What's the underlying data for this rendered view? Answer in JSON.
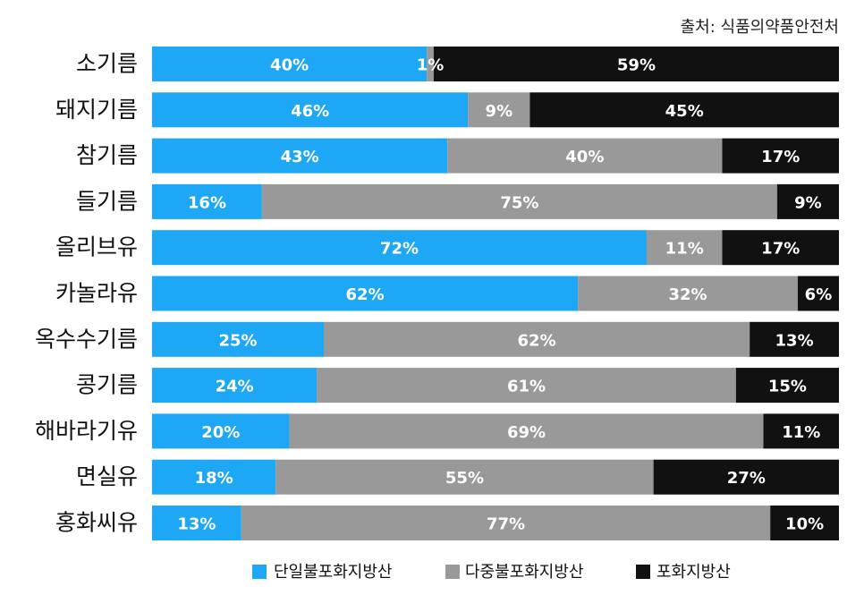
{
  "source_note": "출처: 식품의약품안전처",
  "chart_data": {
    "type": "bar",
    "orientation": "horizontal",
    "stacked": true,
    "normalized_percent": true,
    "categories": [
      "소기름",
      "돼지기름",
      "참기름",
      "들기름",
      "올리브유",
      "카놀라유",
      "옥수수기름",
      "콩기름",
      "해바라기유",
      "면실유",
      "홍화씨유"
    ],
    "series": [
      {
        "name": "단일불포화지방산",
        "color": "#1ea7f5",
        "text_color": "#ffffff",
        "values": [
          40,
          46,
          43,
          16,
          72,
          62,
          25,
          24,
          20,
          18,
          13
        ],
        "labels": [
          "40%",
          "46%",
          "43%",
          "16%",
          "72%",
          "62%",
          "25%",
          "24%",
          "20%",
          "18%",
          "13%"
        ]
      },
      {
        "name": "다중불포화지방산",
        "color": "#999999",
        "text_color": "#ffffff",
        "values": [
          1,
          9,
          40,
          75,
          11,
          32,
          62,
          61,
          69,
          55,
          77
        ],
        "labels": [
          "1%",
          "9%",
          "40%",
          "75%",
          "11%",
          "32%",
          "62%",
          "61%",
          "69%",
          "55%",
          "77%"
        ]
      },
      {
        "name": "포화지방산",
        "color": "#111111",
        "text_color": "#ffffff",
        "values": [
          59,
          45,
          17,
          9,
          17,
          6,
          13,
          15,
          11,
          27,
          10
        ],
        "labels": [
          "59%",
          "45%",
          "17%",
          "9%",
          "17%",
          "6%",
          "13%",
          "15%",
          "11%",
          "27%",
          "10%"
        ]
      }
    ],
    "xlim": [
      0,
      100
    ],
    "grid": false,
    "legend_position": "bottom-center"
  }
}
